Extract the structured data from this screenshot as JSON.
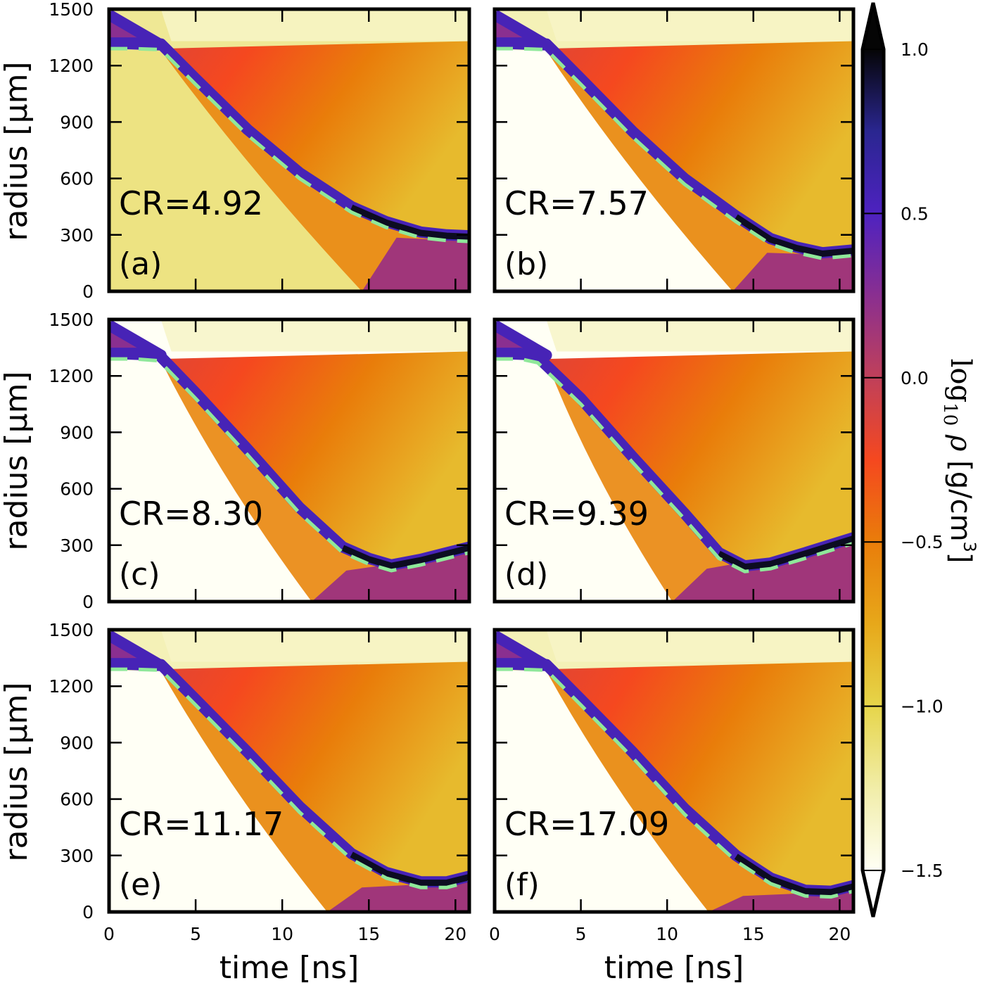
{
  "chart_data": {
    "type": "heatmap",
    "description": "Six-panel radius-vs-time maps of log10 density for different convergence ratios (CR)",
    "xlabel": "time [ns]",
    "ylabel": "radius [μm]",
    "xlim": [
      0,
      20.8
    ],
    "ylim": [
      0,
      1500
    ],
    "xticks": [
      0,
      5,
      10,
      15,
      20
    ],
    "xtick_labels": [
      "0",
      "5",
      "10",
      "15",
      "20"
    ],
    "yticks": [
      0,
      300,
      600,
      900,
      1200,
      1500
    ],
    "ytick_labels": [
      "0",
      "300",
      "600",
      "900",
      "1200",
      "1500"
    ],
    "colorbar": {
      "label": "log₁₀ ρ [g/cm³]",
      "label_parts": {
        "main": "log",
        "sub": "10",
        "var": " ρ ",
        "unit": "[g/cm",
        "sup": "3",
        "close": "]"
      },
      "range": [
        -1.5,
        1.0
      ],
      "ticks": [
        1.0,
        0.5,
        0.0,
        -0.5,
        -1.0,
        -1.5
      ],
      "tick_labels": [
        "1.0",
        "0.5",
        "0.0",
        "−0.5",
        "−1.0",
        "−1.5"
      ],
      "extend": "both",
      "colormap": [
        {
          "v": -1.5,
          "c": "#fffff5"
        },
        {
          "v": -1.25,
          "c": "#f1eda8"
        },
        {
          "v": -1.0,
          "c": "#e6d54a"
        },
        {
          "v": -0.75,
          "c": "#e7a81a"
        },
        {
          "v": -0.5,
          "c": "#e97d0a"
        },
        {
          "v": -0.25,
          "c": "#f5481f"
        },
        {
          "v": 0.0,
          "c": "#c0405a"
        },
        {
          "v": 0.25,
          "c": "#8a2f90"
        },
        {
          "v": 0.5,
          "c": "#4e22c0"
        },
        {
          "v": 0.75,
          "c": "#2a2690"
        },
        {
          "v": 1.0,
          "c": "#050505"
        }
      ]
    },
    "shell_trajectory_color": "#8fe89a",
    "panels": [
      {
        "letter": "(a)",
        "cr_label": "CR=4.92",
        "cr": 4.92,
        "inner_fill_log_rho": -1.15,
        "trajectory": [
          [
            0,
            1290
          ],
          [
            1.5,
            1290
          ],
          [
            3,
            1285
          ],
          [
            5,
            1100
          ],
          [
            8,
            830
          ],
          [
            11,
            600
          ],
          [
            14,
            420
          ],
          [
            16,
            340
          ],
          [
            18,
            285
          ],
          [
            19.5,
            270
          ],
          [
            20.8,
            265
          ]
        ],
        "inner_shock_zero_time": 14.6,
        "upper_region_top_log_rho": -1.2
      },
      {
        "letter": "(b)",
        "cr_label": "CR=7.57",
        "cr": 7.57,
        "inner_fill_log_rho": -1.6,
        "trajectory": [
          [
            0,
            1290
          ],
          [
            1.5,
            1290
          ],
          [
            3,
            1285
          ],
          [
            5,
            1100
          ],
          [
            8,
            820
          ],
          [
            11,
            570
          ],
          [
            14,
            370
          ],
          [
            16,
            250
          ],
          [
            17.5,
            205
          ],
          [
            19,
            175
          ],
          [
            20.8,
            190
          ]
        ],
        "inner_shock_zero_time": 13.8,
        "upper_region_top_log_rho": -1.3
      },
      {
        "letter": "(c)",
        "cr_label": "CR=8.30",
        "cr": 8.3,
        "inner_fill_log_rho": -1.6,
        "trajectory": [
          [
            0,
            1290
          ],
          [
            1.5,
            1290
          ],
          [
            2.9,
            1280
          ],
          [
            5,
            1080
          ],
          [
            8,
            780
          ],
          [
            11,
            470
          ],
          [
            13.5,
            260
          ],
          [
            15,
            200
          ],
          [
            16.3,
            165
          ],
          [
            18,
            195
          ],
          [
            20.8,
            260
          ]
        ],
        "inner_shock_zero_time": 11.7,
        "upper_region_top_log_rho": -1.6
      },
      {
        "letter": "(d)",
        "cr_label": "CR=9.39",
        "cr": 9.39,
        "inner_fill_log_rho": -1.6,
        "trajectory": [
          [
            0,
            1290
          ],
          [
            1.5,
            1290
          ],
          [
            2.5,
            1270
          ],
          [
            5,
            1050
          ],
          [
            8,
            740
          ],
          [
            11,
            440
          ],
          [
            13,
            230
          ],
          [
            14.5,
            160
          ],
          [
            16,
            175
          ],
          [
            18,
            230
          ],
          [
            20.8,
            310
          ]
        ],
        "inner_shock_zero_time": 10.3,
        "upper_region_top_log_rho": -1.6
      },
      {
        "letter": "(e)",
        "cr_label": "CR=11.17",
        "cr": 11.17,
        "inner_fill_log_rho": -1.6,
        "trajectory": [
          [
            0,
            1290
          ],
          [
            1.5,
            1290
          ],
          [
            3,
            1285
          ],
          [
            5,
            1100
          ],
          [
            8,
            820
          ],
          [
            11,
            530
          ],
          [
            14,
            280
          ],
          [
            16,
            180
          ],
          [
            18,
            130
          ],
          [
            19.5,
            130
          ],
          [
            20.8,
            160
          ]
        ],
        "inner_shock_zero_time": 12.6,
        "upper_region_top_log_rho": -1.3
      },
      {
        "letter": "(f)",
        "cr_label": "CR=17.09",
        "cr": 17.09,
        "inner_fill_log_rho": -1.6,
        "trajectory": [
          [
            0,
            1290
          ],
          [
            1.5,
            1290
          ],
          [
            3,
            1285
          ],
          [
            5,
            1100
          ],
          [
            8,
            820
          ],
          [
            11,
            520
          ],
          [
            14,
            270
          ],
          [
            16,
            150
          ],
          [
            18,
            85
          ],
          [
            19.5,
            80
          ],
          [
            20.8,
            110
          ]
        ],
        "inner_shock_zero_time": 12.4,
        "upper_region_top_log_rho": -1.3
      }
    ]
  }
}
